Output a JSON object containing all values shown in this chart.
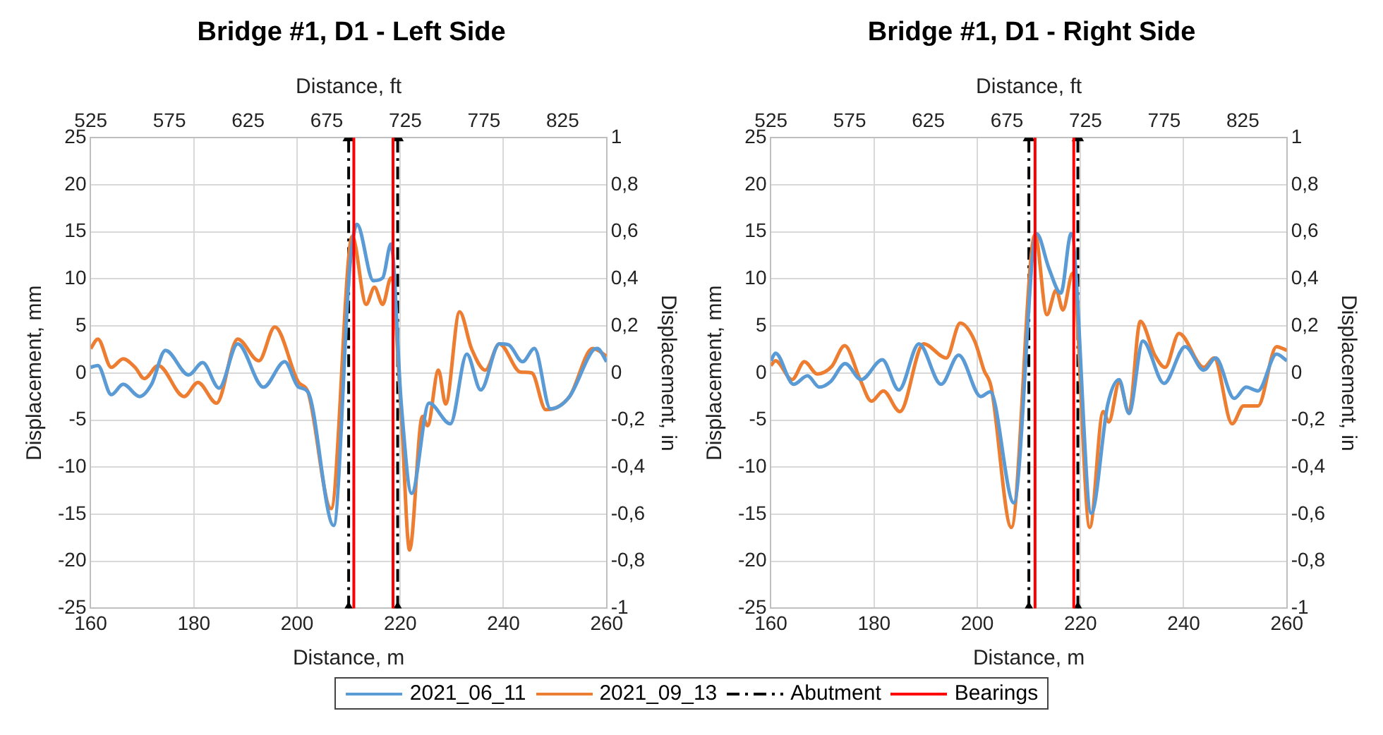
{
  "chart_data": [
    {
      "type": "line",
      "title": "Bridge #1, D1 - Left Side",
      "xlabel": "Distance, m",
      "ylabel": "Displacement, mm",
      "y2label": "Displacement, in",
      "x2label": "Distance, ft",
      "xlim": [
        160,
        260
      ],
      "xticks": [
        160,
        180,
        200,
        220,
        240,
        260
      ],
      "ylim": [
        -25,
        25
      ],
      "yticks": [
        -25,
        -20,
        -15,
        -10,
        -5,
        0,
        5,
        10,
        15,
        20,
        25
      ],
      "y2lim": [
        -1,
        1
      ],
      "y2ticks": [
        {
          "value": -1,
          "label": "-1"
        },
        {
          "value": -0.8,
          "label": "-0,8"
        },
        {
          "value": -0.6,
          "label": "-0,6"
        },
        {
          "value": -0.4,
          "label": "-0,4"
        },
        {
          "value": -0.2,
          "label": "-0,2"
        },
        {
          "value": 0,
          "label": "0"
        },
        {
          "value": 0.2,
          "label": "0,2"
        },
        {
          "value": 0.4,
          "label": "0,4"
        },
        {
          "value": 0.6,
          "label": "0,6"
        },
        {
          "value": 0.8,
          "label": "0,8"
        },
        {
          "value": 1,
          "label": "1"
        }
      ],
      "x2lim": [
        524.9,
        853.0
      ],
      "x2ticks": [
        525,
        575,
        625,
        675,
        725,
        775,
        825
      ],
      "grid": true,
      "legend": "bottom",
      "marker": "none",
      "line_style": "solid",
      "series": [
        {
          "name": "2021_06_11",
          "color": "#5b9bd5",
          "x": [
            160,
            161.4,
            164,
            166.3,
            169.5,
            171.8,
            174.5,
            179,
            181.7,
            184.9,
            188.5,
            193.5,
            197.6,
            200.3,
            202.1,
            207.1,
            210.2,
            211.6,
            214.8,
            216.6,
            218.2,
            220.2,
            222.2,
            225.6,
            229.7,
            232.9,
            235.6,
            239.2,
            241,
            243.7,
            246,
            249.1,
            252.8,
            257.3,
            258.2,
            260
          ],
          "values": [
            0.6,
            0.8,
            -2.3,
            -1.2,
            -2.5,
            -1.2,
            2.4,
            -0.2,
            1.1,
            -1.6,
            3.1,
            -1.5,
            1.2,
            -1.5,
            -2,
            -16.2,
            11.1,
            15.8,
            9.8,
            10.1,
            13.7,
            -3.3,
            -12.8,
            -3.2,
            -5.4,
            2,
            -1.8,
            3.1,
            3,
            1.2,
            2.6,
            -3.8,
            -2.5,
            2.4,
            2.6,
            1.2
          ]
        },
        {
          "name": "2021_09_13",
          "color": "#ed7d31",
          "x": [
            160,
            161.4,
            164,
            166.3,
            168.6,
            170.4,
            173.1,
            178.1,
            180.8,
            184.4,
            188.5,
            192.6,
            195.7,
            200.3,
            202.1,
            206.6,
            210.7,
            213.4,
            215,
            216.6,
            218.2,
            220.2,
            221.8,
            224.3,
            225.3,
            227.4,
            228.8,
            231.5,
            233.8,
            236.5,
            239.2,
            243.3,
            245.5,
            248.2,
            252.8,
            257.3,
            260
          ],
          "values": [
            2.6,
            3.6,
            0.6,
            1.5,
            0.6,
            -0.6,
            0.8,
            -2.5,
            -1,
            -3.2,
            3.6,
            1.3,
            4.9,
            -1,
            -2,
            -14.4,
            14.5,
            7.3,
            9.1,
            7.3,
            10.1,
            -4.3,
            -18.8,
            -4.6,
            -5.6,
            0.3,
            -3.3,
            6.5,
            2.6,
            0.3,
            3.1,
            0.1,
            0,
            -3.9,
            -2.5,
            2.6,
            1.8
          ]
        },
        {
          "name": "Abutment",
          "type": "line",
          "color": "#000000",
          "line_style": "dashed",
          "marker": "triangle",
          "x": [
            210,
            210
          ],
          "values": [
            -25,
            25
          ]
        },
        {
          "type": "line",
          "color": "#000000",
          "line_style": "dashed",
          "marker": "triangle",
          "x": [
            219.5,
            219.5
          ],
          "values": [
            -25,
            25
          ]
        }
      ],
      "ref_lines": [
        {
          "axis": "x",
          "value": 211,
          "label": "Bearings",
          "color": "#ff0000",
          "line_style": "solid"
        },
        {
          "axis": "x",
          "value": 218.6,
          "color": "#ff0000",
          "line_style": "solid"
        }
      ]
    },
    {
      "type": "line",
      "title": "Bridge #1, D1 - Right Side",
      "xlabel": "Distance, m",
      "ylabel": "Displacement, mm",
      "y2label": "Displacement, in",
      "x2label": "Distance, ft",
      "xlim": [
        160,
        260
      ],
      "xticks": [
        160,
        180,
        200,
        220,
        240,
        260
      ],
      "ylim": [
        -25,
        25
      ],
      "yticks": [
        -25,
        -20,
        -15,
        -10,
        -5,
        0,
        5,
        10,
        15,
        20,
        25
      ],
      "y2lim": [
        -1,
        1
      ],
      "y2ticks": [
        {
          "value": -1,
          "label": "-1"
        },
        {
          "value": -0.8,
          "label": "-0,8"
        },
        {
          "value": -0.6,
          "label": "-0,6"
        },
        {
          "value": -0.4,
          "label": "-0,4"
        },
        {
          "value": -0.2,
          "label": "-0,2"
        },
        {
          "value": 0,
          "label": "0"
        },
        {
          "value": 0.2,
          "label": "0,2"
        },
        {
          "value": 0.4,
          "label": "0,4"
        },
        {
          "value": 0.6,
          "label": "0,6"
        },
        {
          "value": 0.8,
          "label": "0,8"
        },
        {
          "value": 1,
          "label": "1"
        }
      ],
      "x2lim": [
        524.9,
        853.0
      ],
      "x2ticks": [
        525,
        575,
        625,
        675,
        725,
        775,
        825
      ],
      "grid": true,
      "marker": "none",
      "line_style": "solid",
      "series": [
        {
          "color": "#5b9bd5",
          "x": [
            160,
            160.9,
            164.4,
            167.1,
            169.4,
            171.6,
            174.4,
            177.5,
            181.6,
            184.8,
            188.7,
            193,
            196.4,
            200.7,
            202.5,
            207.1,
            211.5,
            213.9,
            216.2,
            218.2,
            222.1,
            225.3,
            227.5,
            229.4,
            232.1,
            236.2,
            240.3,
            243.9,
            246.2,
            249.8,
            252.1,
            254.4,
            258,
            260
          ],
          "values": [
            1.3,
            2.1,
            -1.2,
            -0.3,
            -1.5,
            -0.9,
            1,
            -0.7,
            1.4,
            -1.8,
            3.1,
            -1.2,
            1.9,
            -2.5,
            -2,
            -13.8,
            14.8,
            11.1,
            8.5,
            14.8,
            -14.9,
            -3.3,
            -0.7,
            -4.3,
            3.4,
            -1.1,
            2.8,
            0.3,
            1.6,
            -2.7,
            -1.5,
            -1.9,
            2,
            1.3
          ]
        },
        {
          "color": "#ed7d31",
          "x": [
            160,
            160.9,
            164.1,
            166.5,
            169,
            171.8,
            174.3,
            177.3,
            179.5,
            181.8,
            185,
            189.6,
            194,
            196.7,
            199.5,
            201.3,
            202.7,
            206.6,
            211.2,
            213.5,
            215.3,
            216.6,
            218.5,
            221.8,
            224.4,
            225.5,
            227.5,
            229.4,
            231.6,
            234.4,
            236.4,
            239.1,
            243.9,
            245.9,
            249.4,
            251.6,
            254.4,
            258,
            260
          ],
          "values": [
            0.8,
            1.3,
            -0.7,
            1.2,
            -0.1,
            0.7,
            2.9,
            -0.7,
            -3,
            -1.9,
            -4.1,
            3.1,
            1.6,
            5.3,
            3.4,
            0.3,
            -1.5,
            -16.4,
            14.7,
            6.2,
            8.8,
            6.7,
            10.6,
            -16.4,
            -4.1,
            -5.2,
            -1,
            -4.2,
            5.5,
            1.9,
            0.6,
            4.2,
            0.6,
            1.6,
            -5.4,
            -3.5,
            -3.5,
            2.8,
            2.4
          ]
        },
        {
          "type": "line",
          "color": "#000000",
          "line_style": "dashed",
          "marker": "triangle",
          "x": [
            210,
            210
          ],
          "values": [
            -25,
            25
          ]
        },
        {
          "type": "line",
          "color": "#000000",
          "line_style": "dashed",
          "marker": "triangle",
          "x": [
            219.5,
            219.5
          ],
          "values": [
            -25,
            25
          ]
        }
      ],
      "ref_lines": [
        {
          "axis": "x",
          "value": 211.2,
          "color": "#ff0000",
          "line_style": "solid"
        },
        {
          "axis": "x",
          "value": 218.7,
          "color": "#ff0000",
          "line_style": "solid"
        }
      ]
    }
  ]
}
